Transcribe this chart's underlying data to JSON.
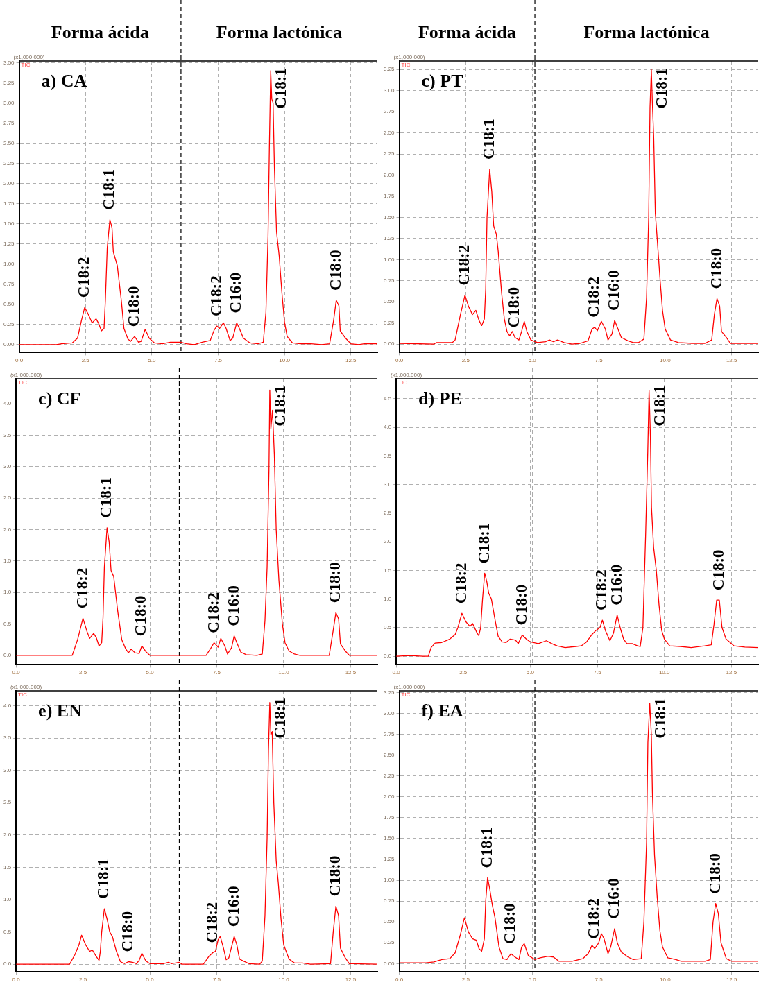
{
  "chart_data": [
    {
      "type": "line",
      "title": "a) CA",
      "xlim": [
        0,
        13.5
      ],
      "xticks": [
        {
          "value": 0,
          "label": "0.0"
        },
        2.5,
        {
          "value": 5,
          "label": "5.0"
        },
        7.5,
        {
          "value": 10,
          "label": "10.0"
        },
        12.5
      ],
      "ylim": [
        -0.1,
        3.52
      ],
      "yticks": [
        {
          "value": 0,
          "label": "0.00"
        },
        0.25,
        {
          "value": 0.5,
          "label": "0.50"
        },
        0.75,
        {
          "value": 1,
          "label": "1.00"
        },
        1.25,
        {
          "value": 1.5,
          "label": "1.50"
        },
        1.75,
        {
          "value": 2,
          "label": "2.00"
        },
        2.25,
        {
          "value": 2.5,
          "label": "2.50"
        },
        2.75,
        {
          "value": 3,
          "label": "3.00"
        },
        3.25,
        {
          "value": 3.5,
          "label": "3.50"
        }
      ],
      "grid": true,
      "ref_lines": [
        {
          "axis": "x",
          "value": 6.1,
          "color": "#000000",
          "line_style": "dashed"
        }
      ],
      "annotations": [
        "(x1,000,000)",
        "TIC",
        "Forma ácida",
        "Forma lactónica",
        {
          "text": "C18:2",
          "x": 2.47,
          "y": 0.46
        },
        {
          "text": "C18:1",
          "x": 3.42,
          "y": 1.55
        },
        {
          "text": "C18:0",
          "x": 4.35,
          "y": 0.1
        },
        {
          "text": "C18:2",
          "x": 7.45,
          "y": 0.23
        },
        {
          "text": "C16:0",
          "x": 8.2,
          "y": 0.27
        },
        {
          "text": "C18:1",
          "x": 9.48,
          "y": 3.4
        },
        {
          "text": "C18:0",
          "x": 11.95,
          "y": 0.55
        }
      ],
      "series": [
        {
          "color": "#ff0000",
          "x": [
            0,
            1.4,
            1.6,
            2.0,
            2.2,
            2.35,
            2.47,
            2.6,
            2.75,
            2.9,
            3.0,
            3.1,
            3.2,
            3.25,
            3.32,
            3.42,
            3.5,
            3.55,
            3.7,
            3.85,
            3.95,
            4.1,
            4.2,
            4.35,
            4.5,
            4.6,
            4.75,
            4.9,
            5.1,
            5.4,
            5.7,
            6.1,
            6.3,
            6.6,
            6.9,
            7.2,
            7.35,
            7.45,
            7.55,
            7.7,
            7.8,
            7.95,
            8.05,
            8.2,
            8.3,
            8.45,
            8.7,
            9.0,
            9.2,
            9.3,
            9.38,
            9.43,
            9.48,
            9.52,
            9.57,
            9.62,
            9.7,
            9.8,
            9.9,
            10.0,
            10.1,
            10.3,
            10.6,
            11.0,
            11.4,
            11.7,
            11.85,
            11.95,
            12.05,
            12.1,
            12.3,
            12.5,
            12.8,
            13.0,
            13.5
          ],
          "values": [
            0,
            0,
            0.01,
            0.02,
            0.08,
            0.3,
            0.46,
            0.38,
            0.27,
            0.32,
            0.26,
            0.17,
            0.2,
            0.55,
            1.2,
            1.55,
            1.45,
            1.15,
            0.98,
            0.55,
            0.2,
            0.07,
            0.04,
            0.1,
            0.03,
            0.04,
            0.19,
            0.08,
            0.02,
            0.01,
            0.03,
            0.03,
            0.01,
            0,
            0.03,
            0.05,
            0.18,
            0.23,
            0.2,
            0.27,
            0.2,
            0.05,
            0.08,
            0.27,
            0.2,
            0.08,
            0.02,
            0.01,
            0.03,
            0.4,
            1.35,
            2.45,
            3.4,
            3.05,
            3.0,
            2.2,
            1.4,
            1.1,
            0.65,
            0.28,
            0.1,
            0.02,
            0.01,
            0.01,
            0,
            0.01,
            0.3,
            0.55,
            0.48,
            0.17,
            0.08,
            0.01,
            0,
            0.01,
            0.01
          ]
        }
      ]
    },
    {
      "type": "line",
      "title": "c) PT",
      "xlim": [
        0,
        13.5
      ],
      "xticks": [
        {
          "value": 0,
          "label": "0.0"
        },
        2.5,
        {
          "value": 5,
          "label": "5.0"
        },
        7.5,
        {
          "value": 10,
          "label": "10.0"
        },
        12.5
      ],
      "ylim": [
        -0.1,
        3.35
      ],
      "yticks": [
        {
          "value": 0,
          "label": "0.00"
        },
        0.25,
        {
          "value": 0.5,
          "label": "0.50"
        },
        0.75,
        {
          "value": 1,
          "label": "1.00"
        },
        1.25,
        {
          "value": 1.5,
          "label": "1.50"
        },
        1.75,
        {
          "value": 2,
          "label": "2.00"
        },
        2.25,
        {
          "value": 2.5,
          "label": "2.50"
        },
        2.75,
        {
          "value": 3,
          "label": "3.00"
        },
        3.25
      ],
      "grid": true,
      "ref_lines": [
        {
          "axis": "x",
          "value": 5.1,
          "color": "#000000",
          "line_style": "dashed"
        }
      ],
      "annotations": [
        "(x1,000,000)",
        "TIC",
        "Forma ácida",
        "Forma lactónica",
        {
          "text": "C18:2",
          "x": 2.47,
          "y": 0.58
        },
        {
          "text": "C18:1",
          "x": 3.4,
          "y": 2.07
        },
        {
          "text": "C18:0",
          "x": 4.35,
          "y": 0.08
        },
        {
          "text": "C18:2",
          "x": 7.35,
          "y": 0.2
        },
        {
          "text": "C16:0",
          "x": 8.1,
          "y": 0.28
        },
        {
          "text": "C18:1",
          "x": 9.48,
          "y": 3.25
        },
        {
          "text": "C18:0",
          "x": 11.95,
          "y": 0.54
        }
      ],
      "series": [
        {
          "color": "#ff0000",
          "x": [
            0,
            1.3,
            1.4,
            2.0,
            2.1,
            2.3,
            2.47,
            2.6,
            2.75,
            2.88,
            3.0,
            3.1,
            3.2,
            3.25,
            3.3,
            3.4,
            3.48,
            3.55,
            3.65,
            3.72,
            3.85,
            3.95,
            4.05,
            4.15,
            4.25,
            4.35,
            4.5,
            4.6,
            4.7,
            4.8,
            4.95,
            5.2,
            5.5,
            5.65,
            5.8,
            5.95,
            6.2,
            6.5,
            6.8,
            7.1,
            7.25,
            7.35,
            7.45,
            7.6,
            7.75,
            7.85,
            8.0,
            8.1,
            8.2,
            8.35,
            8.6,
            8.8,
            9.0,
            9.2,
            9.3,
            9.38,
            9.43,
            9.48,
            9.52,
            9.57,
            9.63,
            9.7,
            9.8,
            9.9,
            10.0,
            10.2,
            10.5,
            11.0,
            11.5,
            11.75,
            11.85,
            11.95,
            12.05,
            12.12,
            12.3,
            12.45,
            13.0,
            13.5
          ],
          "values": [
            0.01,
            0,
            0.02,
            0.02,
            0.05,
            0.35,
            0.58,
            0.45,
            0.35,
            0.4,
            0.28,
            0.22,
            0.3,
            0.65,
            1.5,
            2.07,
            1.8,
            1.4,
            1.3,
            1.1,
            0.6,
            0.3,
            0.15,
            0.1,
            0.15,
            0.08,
            0.05,
            0.15,
            0.27,
            0.15,
            0.05,
            0.02,
            0.03,
            0.05,
            0.03,
            0.05,
            0.02,
            0,
            0.01,
            0.04,
            0.18,
            0.2,
            0.16,
            0.27,
            0.18,
            0.05,
            0.12,
            0.28,
            0.2,
            0.08,
            0.04,
            0.02,
            0.02,
            0.06,
            0.55,
            1.5,
            2.8,
            3.25,
            2.85,
            2.45,
            1.55,
            1.25,
            0.8,
            0.4,
            0.18,
            0.05,
            0.02,
            0.01,
            0.01,
            0.05,
            0.35,
            0.54,
            0.45,
            0.15,
            0.08,
            0.01,
            0.01,
            0.01
          ]
        }
      ]
    },
    {
      "type": "line",
      "title": "c) CF",
      "xlim": [
        0,
        13.5
      ],
      "xticks": [
        {
          "value": 0,
          "label": "0.0"
        },
        2.5,
        {
          "value": 5,
          "label": "5.0"
        },
        7.5,
        {
          "value": 10,
          "label": "10.0"
        },
        12.5
      ],
      "ylim": [
        -0.15,
        4.4
      ],
      "yticks": [
        {
          "value": 0,
          "label": "0.0"
        },
        0.5,
        {
          "value": 1,
          "label": "1.0"
        },
        1.5,
        {
          "value": 2,
          "label": "2.0"
        },
        2.5,
        {
          "value": 3,
          "label": "3.0"
        },
        3.5,
        {
          "value": 4,
          "label": "4.0"
        }
      ],
      "grid": true,
      "ref_lines": [
        {
          "axis": "x",
          "value": 6.1,
          "color": "#000000",
          "line_style": "dashed"
        }
      ],
      "annotations": [
        "(x1,000,000)",
        "TIC",
        {
          "text": "C18:2",
          "x": 2.5,
          "y": 0.59
        },
        {
          "text": "C18:1",
          "x": 3.4,
          "y": 2.03
        },
        {
          "text": "C18:0",
          "x": 4.7,
          "y": 0.15
        },
        {
          "text": "C18:2",
          "x": 7.4,
          "y": 0.2
        },
        {
          "text": "C16:0",
          "x": 8.15,
          "y": 0.31
        },
        {
          "text": "C18:1",
          "x": 9.48,
          "y": 4.22
        },
        {
          "text": "C18:0",
          "x": 11.95,
          "y": 0.68
        }
      ],
      "series": [
        {
          "color": "#ff0000",
          "x": [
            0,
            2.1,
            2.3,
            2.5,
            2.65,
            2.75,
            2.9,
            3.0,
            3.1,
            3.2,
            3.25,
            3.3,
            3.4,
            3.48,
            3.55,
            3.65,
            3.8,
            3.95,
            4.1,
            4.2,
            4.3,
            4.45,
            4.6,
            4.7,
            4.85,
            5.0,
            7.1,
            7.3,
            7.4,
            7.55,
            7.65,
            7.8,
            7.9,
            8.05,
            8.15,
            8.25,
            8.4,
            8.6,
            9.0,
            9.2,
            9.3,
            9.38,
            9.45,
            9.48,
            9.52,
            9.58,
            9.65,
            9.72,
            9.82,
            9.95,
            10.05,
            10.2,
            10.4,
            10.6,
            11.7,
            11.85,
            11.95,
            12.05,
            12.12,
            12.3,
            12.45,
            13.5
          ],
          "values": [
            0,
            0,
            0.25,
            0.59,
            0.38,
            0.27,
            0.35,
            0.28,
            0.15,
            0.2,
            0.6,
            1.4,
            2.03,
            1.8,
            1.35,
            1.25,
            0.7,
            0.25,
            0.1,
            0.04,
            0.1,
            0.04,
            0.03,
            0.15,
            0.06,
            0,
            0,
            0.13,
            0.2,
            0.13,
            0.27,
            0.15,
            0.02,
            0.12,
            0.31,
            0.2,
            0.05,
            0.01,
            0,
            0.02,
            0.55,
            1.4,
            2.95,
            4.22,
            3.6,
            3.9,
            3.2,
            2.0,
            1.2,
            0.5,
            0.2,
            0.07,
            0.02,
            0,
            0,
            0.4,
            0.68,
            0.58,
            0.18,
            0.07,
            0,
            0
          ]
        }
      ]
    },
    {
      "type": "line",
      "title": "d) PE",
      "xlim": [
        0,
        13.5
      ],
      "xticks": [
        {
          "value": 0,
          "label": "0.0"
        },
        2.5,
        {
          "value": 5,
          "label": "5.0"
        },
        7.5,
        {
          "value": 10,
          "label": "10.0"
        },
        12.5
      ],
      "ylim": [
        -0.15,
        4.85
      ],
      "yticks": [
        {
          "value": 0,
          "label": "0.0"
        },
        0.5,
        {
          "value": 1,
          "label": "1.0"
        },
        1.5,
        {
          "value": 2,
          "label": "2.0"
        },
        2.5,
        {
          "value": 3,
          "label": "3.0"
        },
        3.5,
        {
          "value": 4,
          "label": "4.0"
        },
        4.5
      ],
      "grid": true,
      "ref_lines": [
        {
          "axis": "x",
          "value": 5.1,
          "color": "#000000",
          "line_style": "dashed"
        }
      ],
      "annotations": [
        "(x1,000,000)",
        "TIC",
        {
          "text": "C18:2",
          "x": 2.45,
          "y": 0.75
        },
        {
          "text": "C18:1",
          "x": 3.3,
          "y": 1.45
        },
        {
          "text": "C18:0",
          "x": 4.7,
          "y": 0.37
        },
        {
          "text": "C18:2",
          "x": 7.69,
          "y": 0.63
        },
        {
          "text": "C16:0",
          "x": 8.24,
          "y": 0.72
        },
        {
          "text": "C18:1",
          "x": 9.43,
          "y": 4.65
        },
        {
          "text": "C18:0",
          "x": 12.05,
          "y": 0.98
        }
      ],
      "series": [
        {
          "color": "#ff0000",
          "x": [
            0,
            0.5,
            1.0,
            1.2,
            1.3,
            1.45,
            1.7,
            2.0,
            2.2,
            2.3,
            2.45,
            2.6,
            2.75,
            2.85,
            3.0,
            3.08,
            3.15,
            3.22,
            3.3,
            3.38,
            3.45,
            3.55,
            3.7,
            3.8,
            3.95,
            4.1,
            4.25,
            4.45,
            4.55,
            4.7,
            4.85,
            5.0,
            5.3,
            5.6,
            5.8,
            6.0,
            6.3,
            6.7,
            6.9,
            7.1,
            7.3,
            7.45,
            7.6,
            7.69,
            7.8,
            7.97,
            8.1,
            8.24,
            8.35,
            8.48,
            8.6,
            8.8,
            9.0,
            9.1,
            9.2,
            9.3,
            9.38,
            9.43,
            9.48,
            9.52,
            9.6,
            9.7,
            9.8,
            9.9,
            10.0,
            10.2,
            10.6,
            11.0,
            11.5,
            11.75,
            11.85,
            11.95,
            12.05,
            12.15,
            12.3,
            12.6,
            13.0,
            13.5
          ],
          "values": [
            0,
            0.01,
            0,
            0,
            0.15,
            0.23,
            0.24,
            0.3,
            0.38,
            0.5,
            0.75,
            0.6,
            0.52,
            0.57,
            0.42,
            0.36,
            0.5,
            1.0,
            1.45,
            1.3,
            1.1,
            1.0,
            0.6,
            0.35,
            0.25,
            0.24,
            0.3,
            0.28,
            0.22,
            0.37,
            0.3,
            0.25,
            0.22,
            0.27,
            0.22,
            0.18,
            0.15,
            0.17,
            0.18,
            0.25,
            0.38,
            0.45,
            0.5,
            0.63,
            0.45,
            0.27,
            0.4,
            0.72,
            0.5,
            0.3,
            0.22,
            0.22,
            0.18,
            0.17,
            0.5,
            2.1,
            3.55,
            4.65,
            3.85,
            2.6,
            1.9,
            1.5,
            0.9,
            0.45,
            0.3,
            0.18,
            0.17,
            0.15,
            0.18,
            0.2,
            0.55,
            0.98,
            0.98,
            0.5,
            0.3,
            0.18,
            0.16,
            0.15
          ]
        }
      ]
    },
    {
      "type": "line",
      "title": "e) EN",
      "xlim": [
        0,
        13.5
      ],
      "xticks": [
        {
          "value": 0,
          "label": "0.0"
        },
        2.5,
        {
          "value": 5,
          "label": "5.0"
        },
        7.5,
        {
          "value": 10,
          "label": "10.0"
        },
        12.5
      ],
      "ylim": [
        -0.12,
        4.23
      ],
      "yticks": [
        {
          "value": 0,
          "label": "0.0"
        },
        0.5,
        {
          "value": 1,
          "label": "1.0"
        },
        1.5,
        {
          "value": 2,
          "label": "2.0"
        },
        2.5,
        {
          "value": 3,
          "label": "3.0"
        },
        3.5,
        {
          "value": 4,
          "label": "4.0"
        }
      ],
      "grid": true,
      "ref_lines": [
        {
          "axis": "x",
          "value": 6.1,
          "color": "#000000",
          "line_style": "dashed"
        }
      ],
      "annotations": [
        "(x1,000,000)",
        "TIC",
        {
          "text": "C18:1",
          "x": 3.3,
          "y": 0.86
        },
        {
          "text": "C18:0",
          "x": 4.2,
          "y": 0.04
        },
        {
          "text": "C18:2",
          "x": 7.35,
          "y": 0.18
        },
        {
          "text": "C16:0",
          "x": 8.15,
          "y": 0.43
        },
        {
          "text": "C18:1",
          "x": 9.48,
          "y": 4.05
        },
        {
          "text": "C18:0",
          "x": 11.95,
          "y": 0.9
        }
      ],
      "series": [
        {
          "color": "#ff0000",
          "x": [
            0,
            2.0,
            2.2,
            2.35,
            2.45,
            2.6,
            2.75,
            2.85,
            3.0,
            3.1,
            3.15,
            3.2,
            3.3,
            3.4,
            3.5,
            3.6,
            3.75,
            3.9,
            4.05,
            4.2,
            4.35,
            4.5,
            4.6,
            4.7,
            4.85,
            5.0,
            5.5,
            5.7,
            5.8,
            6.1,
            6.2,
            7.0,
            7.2,
            7.35,
            7.45,
            7.55,
            7.63,
            7.75,
            7.85,
            7.95,
            8.15,
            8.25,
            8.35,
            8.5,
            8.7,
            9.1,
            9.2,
            9.3,
            9.38,
            9.43,
            9.48,
            9.52,
            9.57,
            9.63,
            9.72,
            9.8,
            9.9,
            10.0,
            10.2,
            10.4,
            10.7,
            11.0,
            11.75,
            11.85,
            11.95,
            12.05,
            12.12,
            12.3,
            12.45,
            13.5
          ],
          "values": [
            0,
            0,
            0.15,
            0.3,
            0.45,
            0.3,
            0.2,
            0.22,
            0.12,
            0.06,
            0.2,
            0.5,
            0.86,
            0.7,
            0.5,
            0.43,
            0.2,
            0.04,
            0.01,
            0.04,
            0.03,
            0.01,
            0.06,
            0.17,
            0.05,
            0.01,
            0.01,
            0.03,
            0.01,
            0.03,
            0,
            0,
            0.12,
            0.18,
            0.2,
            0.38,
            0.43,
            0.25,
            0.07,
            0.1,
            0.43,
            0.3,
            0.08,
            0.05,
            0.01,
            0,
            0.05,
            0.75,
            1.95,
            3.3,
            4.05,
            3.55,
            3.6,
            2.5,
            1.6,
            1.25,
            0.7,
            0.3,
            0.08,
            0.02,
            0.02,
            0,
            0.01,
            0.5,
            0.9,
            0.75,
            0.25,
            0.1,
            0.01,
            0
          ]
        }
      ]
    },
    {
      "type": "line",
      "title": "f) EA",
      "xlim": [
        0,
        13.5
      ],
      "xticks": [
        {
          "value": 0,
          "label": "0.0"
        },
        2.5,
        {
          "value": 5,
          "label": "5.0"
        },
        7.5,
        {
          "value": 10,
          "label": "10.0"
        },
        12.5
      ],
      "ylim": [
        -0.1,
        3.27
      ],
      "yticks": [
        {
          "value": 0,
          "label": "0.00"
        },
        0.25,
        {
          "value": 0.5,
          "label": "0.50"
        },
        0.75,
        {
          "value": 1,
          "label": "1.00"
        },
        1.25,
        {
          "value": 1.5,
          "label": "1.50"
        },
        1.75,
        {
          "value": 2,
          "label": "2.00"
        },
        2.25,
        {
          "value": 2.5,
          "label": "2.50"
        },
        2.75,
        {
          "value": 3,
          "label": "3.00"
        },
        3.25
      ],
      "grid": true,
      "ref_lines": [
        {
          "axis": "x",
          "value": 5.1,
          "color": "#000000",
          "line_style": "dashed"
        }
      ],
      "annotations": [
        "(x1,000,000)",
        "TIC",
        {
          "text": "C18:1",
          "x": 3.32,
          "y": 1.03
        },
        {
          "text": "C18:0",
          "x": 4.2,
          "y": 0.12
        },
        {
          "text": "C18:2",
          "x": 7.35,
          "y": 0.18
        },
        {
          "text": "C16:0",
          "x": 8.1,
          "y": 0.42
        },
        {
          "text": "C18:1",
          "x": 9.42,
          "y": 3.12
        },
        {
          "text": "C18:0",
          "x": 11.9,
          "y": 0.72
        }
      ],
      "series": [
        {
          "color": "#ff0000",
          "x": [
            0,
            1.0,
            1.3,
            1.6,
            1.9,
            2.1,
            2.3,
            2.45,
            2.6,
            2.75,
            2.9,
            3.0,
            3.1,
            3.2,
            3.25,
            3.32,
            3.4,
            3.5,
            3.6,
            3.75,
            3.9,
            4.05,
            4.2,
            4.35,
            4.5,
            4.6,
            4.7,
            4.85,
            5.1,
            5.3,
            5.6,
            5.8,
            6.0,
            6.5,
            6.9,
            7.1,
            7.25,
            7.35,
            7.5,
            7.6,
            7.7,
            7.85,
            7.95,
            8.1,
            8.2,
            8.35,
            8.6,
            8.8,
            9.1,
            9.2,
            9.3,
            9.35,
            9.42,
            9.48,
            9.52,
            9.6,
            9.7,
            9.8,
            9.9,
            10.1,
            10.4,
            10.6,
            11.0,
            11.5,
            11.7,
            11.8,
            11.9,
            12.0,
            12.1,
            12.3,
            12.5,
            13.5
          ],
          "values": [
            0.01,
            0.01,
            0.02,
            0.05,
            0.06,
            0.13,
            0.35,
            0.55,
            0.38,
            0.3,
            0.28,
            0.18,
            0.15,
            0.3,
            0.75,
            1.03,
            0.9,
            0.7,
            0.55,
            0.2,
            0.06,
            0.05,
            0.12,
            0.08,
            0.05,
            0.2,
            0.24,
            0.1,
            0.05,
            0.07,
            0.09,
            0.08,
            0.03,
            0.03,
            0.06,
            0.12,
            0.22,
            0.18,
            0.25,
            0.36,
            0.3,
            0.12,
            0.2,
            0.42,
            0.25,
            0.14,
            0.08,
            0.05,
            0.06,
            0.5,
            1.45,
            2.65,
            3.12,
            2.75,
            2.05,
            1.3,
            0.8,
            0.4,
            0.2,
            0.07,
            0.05,
            0.03,
            0.03,
            0.03,
            0.05,
            0.5,
            0.72,
            0.6,
            0.25,
            0.06,
            0.03,
            0.03
          ]
        }
      ]
    }
  ]
}
